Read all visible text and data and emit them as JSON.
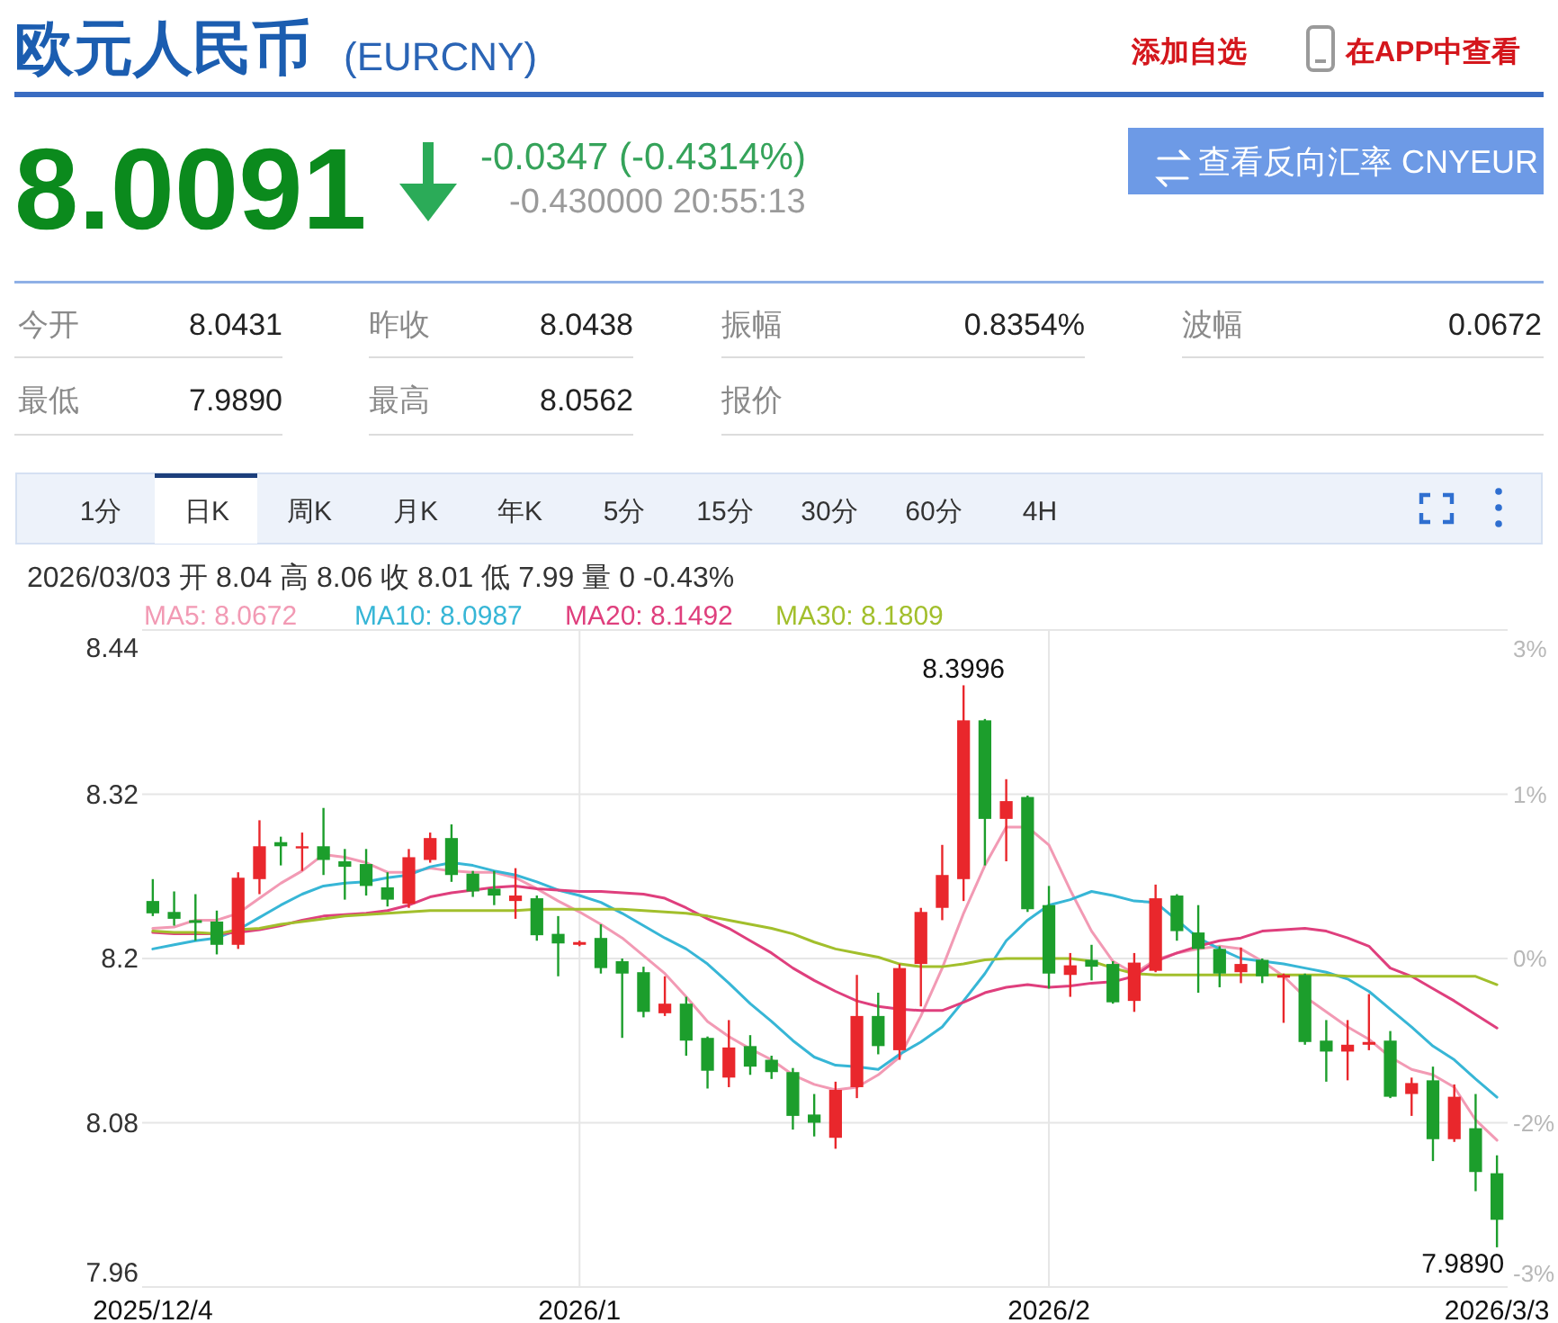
{
  "chart_data": {
    "type": "candlestick",
    "title": "欧元人民币",
    "subtitle": "(EURCNY)",
    "categories": [
      "2025/12/4",
      null,
      null,
      null,
      null,
      null,
      null,
      null,
      null,
      null,
      null,
      null,
      null,
      null,
      null,
      null,
      null,
      null,
      null,
      null,
      "2026/1",
      null,
      null,
      null,
      null,
      null,
      null,
      null,
      null,
      null,
      null,
      null,
      null,
      null,
      null,
      null,
      null,
      null,
      null,
      null,
      null,
      null,
      "2026/2",
      null,
      null,
      null,
      null,
      null,
      null,
      null,
      null,
      null,
      null,
      null,
      null,
      null,
      null,
      null,
      null,
      null,
      null,
      null,
      null,
      "2026/3/3"
    ],
    "ohlc": [
      [
        8.242,
        8.258,
        8.231,
        8.233
      ],
      [
        8.234,
        8.249,
        8.224,
        8.229
      ],
      [
        8.228,
        8.247,
        8.213,
        8.226
      ],
      [
        8.227,
        8.235,
        8.203,
        8.21
      ],
      [
        8.21,
        8.263,
        8.207,
        8.259
      ],
      [
        8.258,
        8.301,
        8.247,
        8.282
      ],
      [
        8.285,
        8.289,
        8.268,
        8.282
      ],
      [
        8.281,
        8.292,
        8.264,
        8.282
      ],
      [
        8.282,
        8.31,
        8.261,
        8.272
      ],
      [
        8.271,
        8.28,
        8.243,
        8.267
      ],
      [
        8.269,
        8.28,
        8.246,
        8.253
      ],
      [
        8.252,
        8.263,
        8.238,
        8.243
      ],
      [
        8.24,
        8.28,
        8.237,
        8.274
      ],
      [
        8.272,
        8.292,
        8.27,
        8.288
      ],
      [
        8.288,
        8.298,
        8.256,
        8.261
      ],
      [
        8.262,
        8.264,
        8.245,
        8.249
      ],
      [
        8.251,
        8.264,
        8.239,
        8.246
      ],
      [
        8.242,
        8.266,
        8.229,
        8.246
      ],
      [
        8.244,
        8.246,
        8.213,
        8.217
      ],
      [
        8.218,
        8.231,
        8.187,
        8.211
      ],
      [
        8.21,
        8.213,
        8.209,
        8.212
      ],
      [
        8.215,
        8.225,
        8.189,
        8.193
      ],
      [
        8.198,
        8.2,
        8.142,
        8.189
      ],
      [
        8.19,
        8.194,
        8.157,
        8.161
      ],
      [
        8.16,
        8.187,
        8.158,
        8.167
      ],
      [
        8.167,
        8.172,
        8.129,
        8.14
      ],
      [
        8.142,
        8.143,
        8.105,
        8.118
      ],
      [
        8.113,
        8.155,
        8.106,
        8.135
      ],
      [
        8.136,
        8.144,
        8.115,
        8.121
      ],
      [
        8.126,
        8.129,
        8.112,
        8.117
      ],
      [
        8.117,
        8.12,
        8.075,
        8.085
      ],
      [
        8.086,
        8.101,
        8.07,
        8.08
      ],
      [
        8.069,
        8.11,
        8.061,
        8.104
      ],
      [
        8.106,
        8.188,
        8.098,
        8.158
      ],
      [
        8.158,
        8.175,
        8.13,
        8.136
      ],
      [
        8.133,
        8.196,
        8.126,
        8.193
      ],
      [
        8.196,
        8.237,
        8.165,
        8.234
      ],
      [
        8.237,
        8.283,
        8.228,
        8.261
      ],
      [
        8.258,
        8.3996,
        8.242,
        8.374
      ],
      [
        8.374,
        8.375,
        8.268,
        8.302
      ],
      [
        8.302,
        8.331,
        8.271,
        8.315
      ],
      [
        8.318,
        8.319,
        8.234,
        8.236
      ],
      [
        8.239,
        8.253,
        8.178,
        8.189
      ],
      [
        8.188,
        8.204,
        8.172,
        8.195
      ],
      [
        8.199,
        8.21,
        8.184,
        8.194
      ],
      [
        8.196,
        8.198,
        8.167,
        8.168
      ],
      [
        8.169,
        8.204,
        8.161,
        8.197
      ],
      [
        8.191,
        8.254,
        8.19,
        8.244
      ],
      [
        8.246,
        8.247,
        8.213,
        8.22
      ],
      [
        8.219,
        8.239,
        8.175,
        8.207
      ],
      [
        8.207,
        8.209,
        8.179,
        8.189
      ],
      [
        8.19,
        8.208,
        8.182,
        8.196
      ],
      [
        8.199,
        8.2,
        8.182,
        8.187
      ],
      [
        8.186,
        8.189,
        8.153,
        8.188
      ],
      [
        8.188,
        8.189,
        8.137,
        8.139
      ],
      [
        8.14,
        8.155,
        8.11,
        8.132
      ],
      [
        8.132,
        8.155,
        8.111,
        8.137
      ],
      [
        8.137,
        8.174,
        8.133,
        8.139
      ],
      [
        8.14,
        8.147,
        8.098,
        8.099
      ],
      [
        8.101,
        8.113,
        8.085,
        8.109
      ],
      [
        8.111,
        8.121,
        8.052,
        8.068
      ],
      [
        8.068,
        8.108,
        8.066,
        8.099
      ],
      [
        8.076,
        8.101,
        8.03,
        8.044
      ],
      [
        8.0431,
        8.0562,
        7.989,
        8.0091
      ]
    ],
    "colors": [
      "#1c9e2c",
      "#1c9e2c",
      "#1c9e2c",
      "#1c9e2c",
      "#e9272c",
      "#e9272c",
      "#1c9e2c",
      "#e9272c",
      "#1c9e2c",
      "#1c9e2c",
      "#1c9e2c",
      "#1c9e2c",
      "#e9272c",
      "#e9272c",
      "#1c9e2c",
      "#1c9e2c",
      "#1c9e2c",
      "#e9272c",
      "#1c9e2c",
      "#1c9e2c",
      "#e9272c",
      "#1c9e2c",
      "#1c9e2c",
      "#1c9e2c",
      "#e9272c",
      "#1c9e2c",
      "#1c9e2c",
      "#e9272c",
      "#1c9e2c",
      "#1c9e2c",
      "#1c9e2c",
      "#1c9e2c",
      "#e9272c",
      "#e9272c",
      "#1c9e2c",
      "#e9272c",
      "#e9272c",
      "#e9272c",
      "#e9272c",
      "#1c9e2c",
      "#e9272c",
      "#1c9e2c",
      "#1c9e2c",
      "#e9272c",
      "#1c9e2c",
      "#1c9e2c",
      "#e9272c",
      "#e9272c",
      "#1c9e2c",
      "#1c9e2c",
      "#1c9e2c",
      "#e9272c",
      "#1c9e2c",
      "#e9272c",
      "#1c9e2c",
      "#1c9e2c",
      "#e9272c",
      "#e9272c",
      "#1c9e2c",
      "#e9272c",
      "#1c9e2c",
      "#e9272c",
      "#1c9e2c",
      "#1c9e2c"
    ],
    "series": [
      {
        "name": "MA5: 8.0672",
        "type": "line",
        "color": "#f29ab4",
        "values": [
          8.222,
          8.223,
          8.228,
          8.228,
          8.233,
          8.244,
          8.255,
          8.264,
          8.276,
          8.274,
          8.27,
          8.263,
          8.263,
          8.266,
          8.264,
          8.263,
          8.263,
          8.259,
          8.251,
          8.242,
          8.234,
          8.225,
          8.215,
          8.202,
          8.189,
          8.172,
          8.154,
          8.143,
          8.134,
          8.126,
          8.115,
          8.108,
          8.104,
          8.106,
          8.115,
          8.128,
          8.158,
          8.193,
          8.233,
          8.268,
          8.296,
          8.296,
          8.283,
          8.25,
          8.22,
          8.198,
          8.189,
          8.199,
          8.204,
          8.207,
          8.209,
          8.207,
          8.198,
          8.187,
          8.172,
          8.161,
          8.15,
          8.141,
          8.128,
          8.119,
          8.115,
          8.106,
          8.082,
          8.0672
        ]
      },
      {
        "name": "MA10: 8.0987",
        "type": "line",
        "color": "#37b6d6",
        "values": [
          8.207,
          8.21,
          8.213,
          8.215,
          8.221,
          8.23,
          8.239,
          8.247,
          8.253,
          8.255,
          8.256,
          8.259,
          8.261,
          8.267,
          8.27,
          8.268,
          8.264,
          8.261,
          8.256,
          8.25,
          8.246,
          8.241,
          8.233,
          8.224,
          8.215,
          8.207,
          8.196,
          8.182,
          8.167,
          8.154,
          8.14,
          8.128,
          8.122,
          8.121,
          8.119,
          8.13,
          8.139,
          8.15,
          8.169,
          8.189,
          8.213,
          8.228,
          8.239,
          8.243,
          8.249,
          8.246,
          8.242,
          8.241,
          8.228,
          8.215,
          8.207,
          8.2,
          8.198,
          8.196,
          8.193,
          8.19,
          8.185,
          8.176,
          8.163,
          8.15,
          8.136,
          8.126,
          8.112,
          8.0987
        ]
      },
      {
        "name": "MA20: 8.1492",
        "type": "line",
        "color": "#df3f7d",
        "values": [
          8.219,
          8.218,
          8.218,
          8.218,
          8.219,
          8.221,
          8.224,
          8.228,
          8.231,
          8.232,
          8.233,
          8.235,
          8.239,
          8.245,
          8.248,
          8.25,
          8.252,
          8.253,
          8.251,
          8.25,
          8.249,
          8.249,
          8.248,
          8.247,
          8.244,
          8.237,
          8.229,
          8.222,
          8.213,
          8.204,
          8.193,
          8.184,
          8.176,
          8.169,
          8.165,
          8.163,
          8.162,
          8.162,
          8.168,
          8.175,
          8.179,
          8.181,
          8.179,
          8.18,
          8.182,
          8.183,
          8.187,
          8.198,
          8.204,
          8.209,
          8.213,
          8.215,
          8.22,
          8.221,
          8.222,
          8.22,
          8.215,
          8.209,
          8.193,
          8.187,
          8.178,
          8.169,
          8.159,
          8.1492
        ]
      },
      {
        "name": "MA30: 8.1809",
        "type": "line",
        "color": "#a2bf2c",
        "values": [
          8.22,
          8.219,
          8.219,
          8.218,
          8.221,
          8.222,
          8.225,
          8.227,
          8.229,
          8.231,
          8.232,
          8.233,
          8.234,
          8.235,
          8.235,
          8.235,
          8.235,
          8.235,
          8.236,
          8.236,
          8.236,
          8.236,
          8.236,
          8.235,
          8.234,
          8.233,
          8.231,
          8.228,
          8.225,
          8.222,
          8.218,
          8.212,
          8.207,
          8.204,
          8.201,
          8.196,
          8.194,
          8.194,
          8.196,
          8.199,
          8.2,
          8.2,
          8.2,
          8.2,
          8.198,
          8.193,
          8.189,
          8.188,
          8.188,
          8.188,
          8.188,
          8.188,
          8.188,
          8.188,
          8.188,
          8.188,
          8.187,
          8.187,
          8.187,
          8.187,
          8.187,
          8.187,
          8.187,
          8.1809
        ]
      }
    ],
    "ylim": [
      7.96,
      8.44
    ],
    "yticks": [
      8.44,
      8.32,
      8.2,
      8.08,
      7.96
    ],
    "y2lim": [
      -3.32,
      2.51
    ],
    "y2ticks": [
      {
        "value": 2.51,
        "label": "3%"
      },
      {
        "value": 1.06,
        "label": "1%"
      },
      {
        "value": -0.4,
        "label": "0%"
      },
      {
        "value": -1.86,
        "label": "-2%"
      },
      {
        "value": -3.32,
        "label": "-3%"
      }
    ],
    "grid": true,
    "legend": "top",
    "annotations": [
      "添加自选",
      "在APP中查看",
      "8.0091",
      "-0.0347 (-0.4314%)",
      "-0.430000 20:55:13",
      "查看反向汇率 CNYEUR",
      "今开",
      "8.0431",
      "昨收",
      "8.0438",
      "振幅",
      "0.8354%",
      "波幅",
      "0.0672",
      "最低",
      "7.9890",
      "最高",
      "8.0562",
      "报价",
      "1分",
      "日K",
      "周K",
      "月K",
      "年K",
      "5分",
      "15分",
      "30分",
      "60分",
      "4H",
      "2026/03/03 开 8.04 高 8.06 收 8.01 低 7.99 量 0 -0.43%",
      {
        "text": "8.3996",
        "y": 8.3996
      },
      {
        "text": "7.9890",
        "x": "2026/3/3",
        "y": 7.989
      }
    ]
  }
}
